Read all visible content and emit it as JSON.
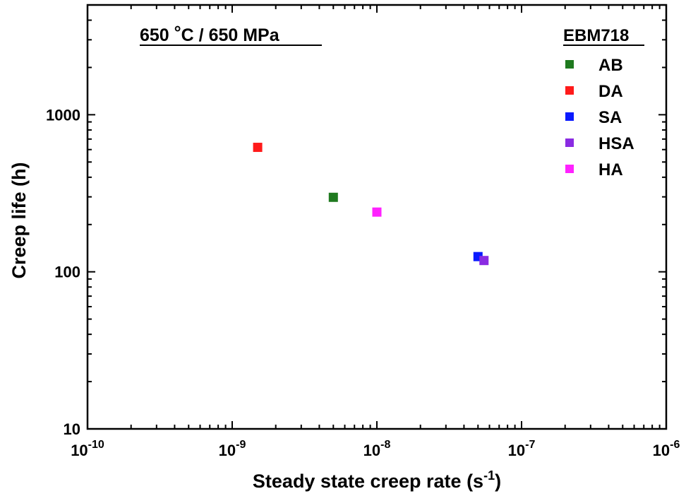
{
  "chart_data": {
    "type": "scatter",
    "title": "",
    "annotation": "650 °C / 650 MPa",
    "annotation_parts": {
      "num": "650 ",
      "deg": "°",
      "rest": "C / 650 MPa"
    },
    "xlabel": {
      "main": "Steady state creep rate (s",
      "sup": "-1",
      "end": ")"
    },
    "ylabel": "Creep life (h)",
    "xscale": "log",
    "yscale": "log",
    "xlim": [
      1e-10,
      1e-06
    ],
    "ylim": [
      10,
      5000
    ],
    "x_ticks": [
      {
        "value": 1e-10,
        "base": "10",
        "exp": "-10"
      },
      {
        "value": 1e-09,
        "base": "10",
        "exp": "-9"
      },
      {
        "value": 1e-08,
        "base": "10",
        "exp": "-8"
      },
      {
        "value": 1e-07,
        "base": "10",
        "exp": "-7"
      },
      {
        "value": 1e-06,
        "base": "10",
        "exp": "-6"
      }
    ],
    "y_ticks": [
      {
        "value": 10,
        "label": "10"
      },
      {
        "value": 100,
        "label": "100"
      },
      {
        "value": 1000,
        "label": "1000"
      }
    ],
    "grid": false,
    "legend": {
      "title": "EBM718",
      "position": "top-right"
    },
    "series": [
      {
        "name": "AB",
        "color": "#1f7a1f",
        "points": [
          {
            "x": 5e-09,
            "y": 298
          }
        ]
      },
      {
        "name": "DA",
        "color": "#ff1a1a",
        "points": [
          {
            "x": 1.5e-09,
            "y": 620
          }
        ]
      },
      {
        "name": "SA",
        "color": "#0a1aff",
        "points": [
          {
            "x": 5e-08,
            "y": 125
          }
        ]
      },
      {
        "name": "HSA",
        "color": "#8a2be2",
        "points": [
          {
            "x": 5.5e-08,
            "y": 118
          }
        ]
      },
      {
        "name": "HA",
        "color": "#ff22ff",
        "points": [
          {
            "x": 1e-08,
            "y": 240
          }
        ]
      }
    ]
  }
}
